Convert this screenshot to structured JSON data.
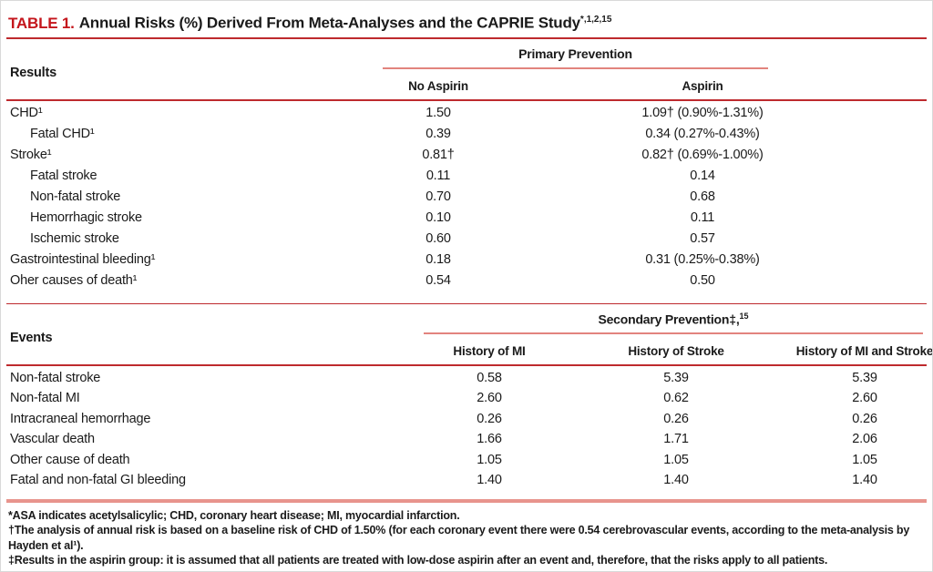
{
  "title": {
    "label": "TABLE 1.",
    "text": "Annual Risks (%) Derived From Meta-Analyses and the CAPRIE Study",
    "superscript": "*,1,2,15"
  },
  "primary_table": {
    "row_header": "Results",
    "group_header": {
      "text": "Primary Prevention",
      "superscript": ""
    },
    "columns": [
      "No Aspirin",
      "Aspirin"
    ],
    "rows": [
      {
        "label": "CHD¹",
        "indent": false,
        "no_aspirin": "1.50",
        "aspirin": "1.09† (0.90%-1.31%)"
      },
      {
        "label": "Fatal CHD¹",
        "indent": true,
        "no_aspirin": "0.39",
        "aspirin": "0.34 (0.27%-0.43%)"
      },
      {
        "label": "Stroke¹",
        "indent": false,
        "no_aspirin": "0.81†",
        "aspirin": "0.82† (0.69%-1.00%)"
      },
      {
        "label": "Fatal stroke",
        "indent": true,
        "no_aspirin": "0.11",
        "aspirin": "0.14"
      },
      {
        "label": "Non-fatal stroke",
        "indent": true,
        "no_aspirin": "0.70",
        "aspirin": "0.68"
      },
      {
        "label": "Hemorrhagic stroke",
        "indent": true,
        "no_aspirin": "0.10",
        "aspirin": "0.11"
      },
      {
        "label": "Ischemic stroke",
        "indent": true,
        "no_aspirin": "0.60",
        "aspirin": "0.57"
      },
      {
        "label": "Gastrointestinal bleeding¹",
        "indent": false,
        "no_aspirin": "0.18",
        "aspirin": "0.31 (0.25%-0.38%)"
      },
      {
        "label": "Oher causes of death¹",
        "indent": false,
        "no_aspirin": "0.54",
        "aspirin": "0.50"
      }
    ]
  },
  "secondary_table": {
    "row_header": "Events",
    "group_header": {
      "text": "Secondary Prevention‡,",
      "superscript": "15"
    },
    "columns": [
      "History of MI",
      "History of Stroke",
      "History of MI and Stroke"
    ],
    "rows": [
      {
        "label": "Non-fatal stroke",
        "values": [
          "0.58",
          "5.39",
          "5.39"
        ]
      },
      {
        "label": "Non-fatal MI",
        "values": [
          "2.60",
          "0.62",
          "2.60"
        ]
      },
      {
        "label": "Intracraneal hemorrhage",
        "values": [
          "0.26",
          "0.26",
          "0.26"
        ]
      },
      {
        "label": "Vascular death",
        "values": [
          "1.66",
          "1.71",
          "2.06"
        ]
      },
      {
        "label": "Other cause of death",
        "values": [
          "1.05",
          "1.05",
          "1.05"
        ]
      },
      {
        "label": "Fatal and non-fatal GI bleeding",
        "values": [
          "1.40",
          "1.40",
          "1.40"
        ]
      }
    ]
  },
  "footnotes": [
    "*ASA indicates acetylsalicylic; CHD, coronary heart disease; MI, myocardial infarction.",
    "†The analysis of annual risk is based on a baseline risk of CHD of 1.50% (for each coronary event there were 0.54 cerebrovascular events, according to the meta-analysis by Hayden et al¹).",
    "‡Results in the aspirin group: it is assumed that all patients are treated with low-dose aspirin after an event and, therefore, that the risks apply to all patients."
  ],
  "chart_data": {
    "type": "table",
    "title": "TABLE 1. Annual Risks (%) Derived From Meta-Analyses and the CAPRIE Study",
    "sections": [
      {
        "name": "Primary Prevention",
        "columns": [
          "Results",
          "No Aspirin",
          "Aspirin"
        ],
        "rows": [
          [
            "CHD",
            "1.50",
            "1.09 (0.90%-1.31%)"
          ],
          [
            "Fatal CHD",
            "0.39",
            "0.34 (0.27%-0.43%)"
          ],
          [
            "Stroke",
            "0.81",
            "0.82 (0.69%-1.00%)"
          ],
          [
            "Fatal stroke",
            "0.11",
            "0.14"
          ],
          [
            "Non-fatal stroke",
            "0.70",
            "0.68"
          ],
          [
            "Hemorrhagic stroke",
            "0.10",
            "0.11"
          ],
          [
            "Ischemic stroke",
            "0.60",
            "0.57"
          ],
          [
            "Gastrointestinal bleeding",
            "0.18",
            "0.31 (0.25%-0.38%)"
          ],
          [
            "Oher causes of death",
            "0.54",
            "0.50"
          ]
        ]
      },
      {
        "name": "Secondary Prevention",
        "columns": [
          "Events",
          "History of MI",
          "History of Stroke",
          "History of MI and Stroke"
        ],
        "rows": [
          [
            "Non-fatal stroke",
            0.58,
            5.39,
            5.39
          ],
          [
            "Non-fatal MI",
            2.6,
            0.62,
            2.6
          ],
          [
            "Intracraneal hemorrhage",
            0.26,
            0.26,
            0.26
          ],
          [
            "Vascular death",
            1.66,
            1.71,
            2.06
          ],
          [
            "Other cause of death",
            1.05,
            1.05,
            1.05
          ],
          [
            "Fatal and non-fatal GI bleeding",
            1.4,
            1.4,
            1.4
          ]
        ]
      }
    ]
  },
  "colors": {
    "accent_red": "#C4161C",
    "rule_dark": "#BE2A2E",
    "rule_light": "#E2847E",
    "band_light": "#E8948D",
    "text": "#1A1A1A",
    "background": "#FFFFFF"
  }
}
